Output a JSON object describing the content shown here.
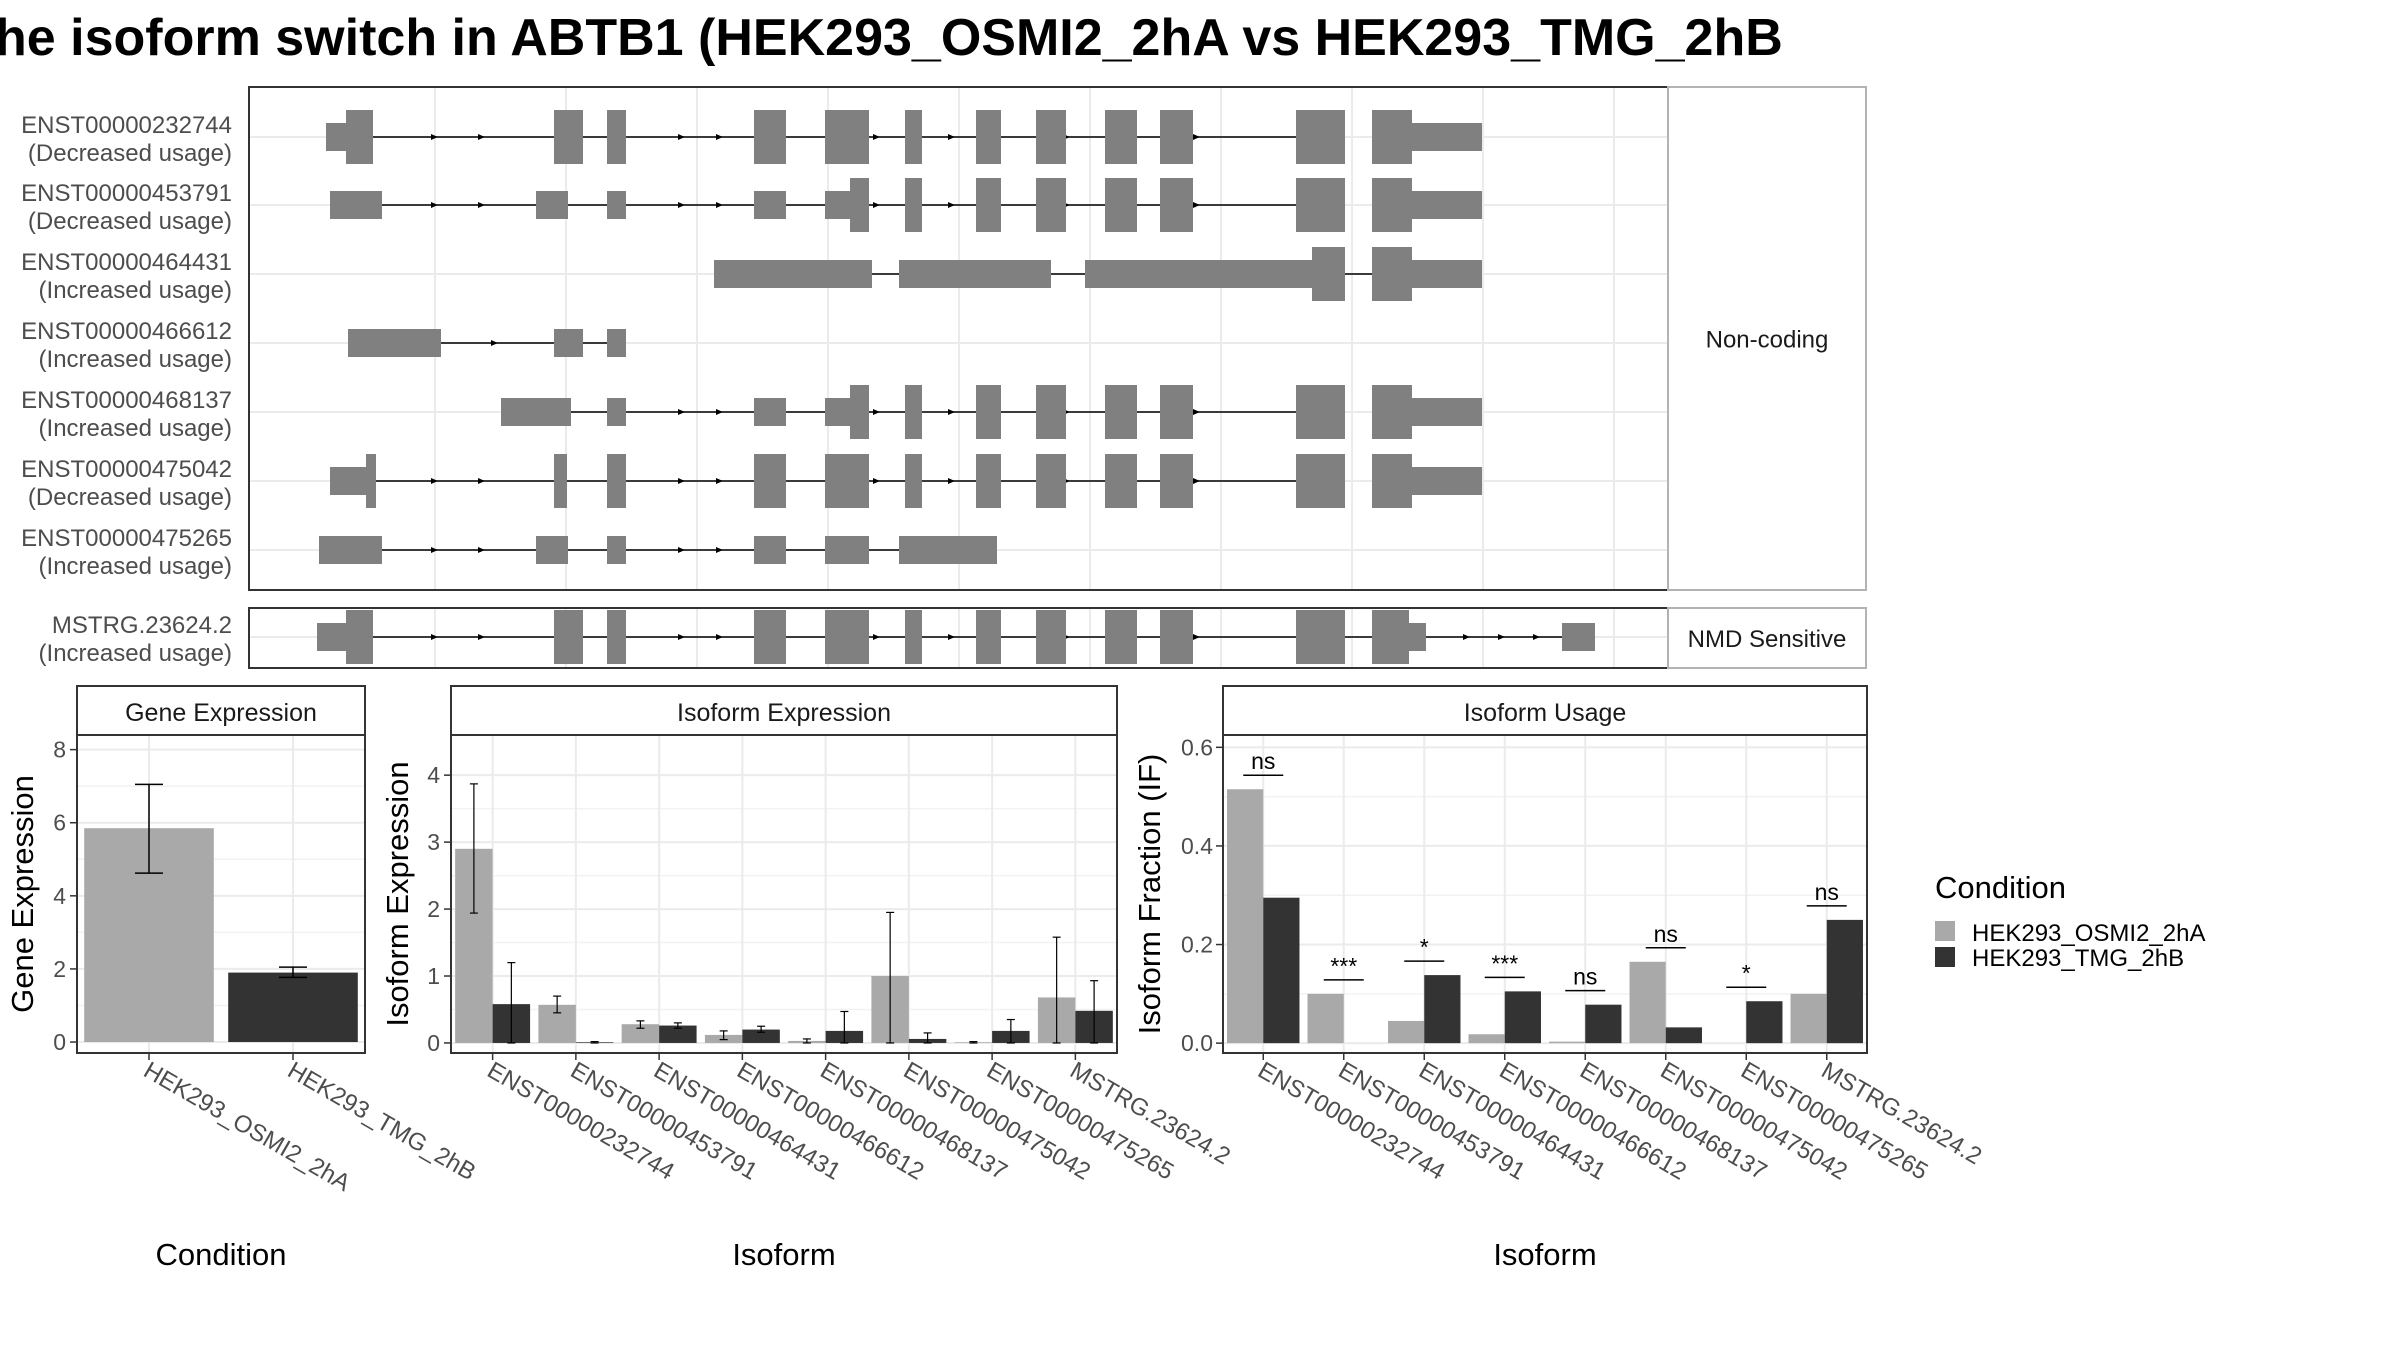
{
  "title": "he isoform switch in ABTB1 (HEK293_OSMI2_2hA vs HEK293_TMG_2hB",
  "colors": {
    "exon": "#808080",
    "cond1": "#a9a9a9",
    "cond2": "#333333",
    "grid": "#ebebeb",
    "panel_border": "#333333",
    "strip_border": "#b3b3b3"
  },
  "structure": {
    "groups": [
      {
        "label": "Non-coding",
        "transcripts": [
          {
            "id": "ENST00000232744",
            "usage": "(Decreased usage)",
            "exons": [
              [
                77,
                97,
                "t"
              ],
              [
                97,
                124,
                "T"
              ],
              [
                305,
                334,
                "T"
              ],
              [
                358,
                377,
                "T"
              ],
              [
                505,
                537,
                "T"
              ],
              [
                576,
                620,
                "T"
              ],
              [
                656,
                673,
                "T"
              ],
              [
                727,
                752,
                "T"
              ],
              [
                787,
                817,
                "T"
              ],
              [
                856,
                888,
                "T"
              ],
              [
                911,
                944,
                "T"
              ],
              [
                1047,
                1096,
                "T"
              ],
              [
                1123,
                1163,
                "T"
              ],
              [
                1163,
                1233,
                "t"
              ]
            ],
            "line": [
              124,
              1047
            ],
            "arrows": [
              188,
              235,
              435,
              473,
              630,
              705,
              820,
              950
            ]
          },
          {
            "id": "ENST00000453791",
            "usage": "(Decreased usage)",
            "exons": [
              [
                81,
                133,
                "t"
              ],
              [
                287,
                319,
                "t"
              ],
              [
                358,
                377,
                "t"
              ],
              [
                505,
                537,
                "t"
              ],
              [
                576,
                601,
                "t"
              ],
              [
                601,
                620,
                "T"
              ],
              [
                656,
                673,
                "T"
              ],
              [
                727,
                752,
                "T"
              ],
              [
                787,
                817,
                "T"
              ],
              [
                856,
                888,
                "T"
              ],
              [
                911,
                944,
                "T"
              ],
              [
                1047,
                1096,
                "T"
              ],
              [
                1123,
                1163,
                "T"
              ],
              [
                1163,
                1233,
                "t"
              ]
            ],
            "line": [
              133,
              1047
            ],
            "arrows": [
              188,
              235,
              435,
              473,
              630,
              705,
              820,
              950
            ]
          },
          {
            "id": "ENST00000464431",
            "usage": "(Increased usage)",
            "exons": [
              [
                465,
                623,
                "t"
              ],
              [
                650,
                802,
                "t"
              ],
              [
                836,
                1063,
                "t"
              ],
              [
                1063,
                1096,
                "T"
              ],
              [
                1123,
                1163,
                "T"
              ],
              [
                1163,
                1233,
                "t"
              ]
            ],
            "line": [
              623,
              1123
            ],
            "arrows": []
          },
          {
            "id": "ENST00000466612",
            "usage": "(Increased usage)",
            "exons": [
              [
                99,
                192,
                "t"
              ],
              [
                305,
                334,
                "t"
              ],
              [
                358,
                377,
                "t"
              ]
            ],
            "line": [
              192,
              358
            ],
            "arrows": [
              248
            ]
          },
          {
            "id": "ENST00000468137",
            "usage": "(Increased usage)",
            "exons": [
              [
                252,
                322,
                "t"
              ],
              [
                358,
                377,
                "t"
              ],
              [
                505,
                537,
                "t"
              ],
              [
                576,
                601,
                "t"
              ],
              [
                601,
                620,
                "T"
              ],
              [
                656,
                673,
                "T"
              ],
              [
                727,
                752,
                "T"
              ],
              [
                787,
                817,
                "T"
              ],
              [
                856,
                888,
                "T"
              ],
              [
                911,
                944,
                "T"
              ],
              [
                1047,
                1096,
                "T"
              ],
              [
                1123,
                1163,
                "T"
              ],
              [
                1163,
                1233,
                "t"
              ]
            ],
            "line": [
              322,
              1047
            ],
            "arrows": [
              435,
              473,
              630,
              705,
              820,
              950
            ]
          },
          {
            "id": "ENST00000475042",
            "usage": "(Decreased usage)",
            "exons": [
              [
                81,
                117,
                "t"
              ],
              [
                117,
                127,
                "T"
              ],
              [
                305,
                318,
                "T"
              ],
              [
                358,
                377,
                "T"
              ],
              [
                505,
                537,
                "T"
              ],
              [
                576,
                620,
                "T"
              ],
              [
                656,
                673,
                "T"
              ],
              [
                727,
                752,
                "T"
              ],
              [
                787,
                817,
                "T"
              ],
              [
                856,
                888,
                "T"
              ],
              [
                911,
                944,
                "T"
              ],
              [
                1047,
                1096,
                "T"
              ],
              [
                1123,
                1163,
                "T"
              ],
              [
                1163,
                1233,
                "t"
              ]
            ],
            "line": [
              127,
              1047
            ],
            "arrows": [
              188,
              235,
              435,
              473,
              630,
              705,
              820,
              950
            ]
          },
          {
            "id": "ENST00000475265",
            "usage": "(Increased usage)",
            "exons": [
              [
                70,
                133,
                "t"
              ],
              [
                287,
                319,
                "t"
              ],
              [
                358,
                377,
                "t"
              ],
              [
                505,
                537,
                "t"
              ],
              [
                576,
                620,
                "t"
              ],
              [
                650,
                748,
                "t"
              ]
            ],
            "line": [
              133,
              650
            ],
            "arrows": [
              188,
              235,
              435,
              473
            ]
          }
        ]
      },
      {
        "label": "NMD Sensitive",
        "transcripts": [
          {
            "id": "MSTRG.23624.2",
            "usage": "(Increased usage)",
            "exons": [
              [
                68,
                97,
                "t"
              ],
              [
                97,
                124,
                "T"
              ],
              [
                305,
                334,
                "T"
              ],
              [
                358,
                377,
                "T"
              ],
              [
                505,
                537,
                "T"
              ],
              [
                576,
                620,
                "T"
              ],
              [
                656,
                673,
                "T"
              ],
              [
                727,
                752,
                "T"
              ],
              [
                787,
                817,
                "T"
              ],
              [
                856,
                888,
                "T"
              ],
              [
                911,
                944,
                "T"
              ],
              [
                1047,
                1096,
                "T"
              ],
              [
                1123,
                1160,
                "T"
              ],
              [
                1160,
                1177,
                "t"
              ],
              [
                1313,
                1346,
                "t"
              ]
            ],
            "line": [
              124,
              1313
            ],
            "arrows": [
              188,
              235,
              435,
              473,
              630,
              705,
              820,
              950,
              1220,
              1255,
              1290
            ]
          }
        ]
      }
    ]
  },
  "chart_data": [
    {
      "type": "bar",
      "title": "Gene Expression",
      "xlabel": "Condition",
      "ylabel": "Gene Expression",
      "categories": [
        "HEK293_OSMI2_2hA",
        "HEK293_TMG_2hB"
      ],
      "values": [
        5.85,
        1.9
      ],
      "error": [
        [
          4.62,
          7.05
        ],
        [
          1.77,
          2.05
        ]
      ],
      "ylim": [
        -0.3,
        8.4
      ],
      "yticks": [
        0,
        2,
        4,
        6,
        8
      ],
      "grid": true
    },
    {
      "type": "bar",
      "title": "Isoform Expression",
      "xlabel": "Isoform",
      "ylabel": "Isoform Expression",
      "categories": [
        "ENST00000232744",
        "ENST00000453791",
        "ENST00000464431",
        "ENST00000466612",
        "ENST00000468137",
        "ENST00000475042",
        "ENST00000475265",
        "MSTRG.23624.2"
      ],
      "series": [
        {
          "name": "HEK293_OSMI2_2hA",
          "values": [
            2.9,
            0.57,
            0.28,
            0.12,
            0.03,
            1.0,
            0.01,
            0.68
          ],
          "error": [
            [
              1.94,
              3.87
            ],
            [
              0.45,
              0.7
            ],
            [
              0.22,
              0.33
            ],
            [
              0.05,
              0.18
            ],
            [
              0,
              0.06
            ],
            [
              0,
              1.95
            ],
            [
              0,
              0.02
            ],
            [
              0,
              1.58
            ]
          ]
        },
        {
          "name": "HEK293_TMG_2hB",
          "values": [
            0.58,
            0.01,
            0.26,
            0.2,
            0.18,
            0.06,
            0.18,
            0.48
          ],
          "error": [
            [
              0,
              1.2
            ],
            [
              0,
              0.02
            ],
            [
              0.22,
              0.3
            ],
            [
              0.16,
              0.25
            ],
            [
              0,
              0.47
            ],
            [
              0,
              0.15
            ],
            [
              0,
              0.35
            ],
            [
              0,
              0.93
            ]
          ]
        }
      ],
      "ylim": [
        -0.15,
        4.6
      ],
      "yticks": [
        0,
        1,
        2,
        3,
        4
      ],
      "grid": true
    },
    {
      "type": "bar",
      "title": "Isoform Usage",
      "xlabel": "Isoform",
      "ylabel": "Isoform Fraction (IF)",
      "categories": [
        "ENST00000232744",
        "ENST00000453791",
        "ENST00000464431",
        "ENST00000466612",
        "ENST00000468137",
        "ENST00000475042",
        "ENST00000475265",
        "MSTRG.23624.2"
      ],
      "series": [
        {
          "name": "HEK293_OSMI2_2hA",
          "values": [
            0.515,
            0.1,
            0.045,
            0.018,
            0.003,
            0.165,
            0.0,
            0.1
          ]
        },
        {
          "name": "HEK293_TMG_2hB",
          "values": [
            0.295,
            0.0,
            0.138,
            0.105,
            0.078,
            0.032,
            0.085,
            0.25
          ]
        }
      ],
      "significance": [
        "ns",
        "***",
        "*",
        "***",
        "ns",
        "ns",
        "*",
        "ns"
      ],
      "ylim": [
        -0.02,
        0.625
      ],
      "yticks": [
        0.0,
        0.2,
        0.4,
        0.6
      ],
      "ytick_labels": [
        "0.0",
        "0.2",
        "0.4",
        "0.6"
      ],
      "grid": true
    }
  ],
  "legend": {
    "title": "Condition",
    "items": [
      "HEK293_OSMI2_2hA",
      "HEK293_TMG_2hB"
    ]
  }
}
